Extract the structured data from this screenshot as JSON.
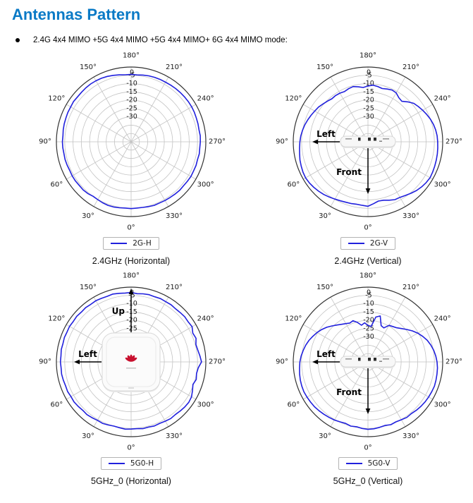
{
  "page": {
    "title": "Antennas Pattern",
    "bullet_text": "2.4G 4x4 MIMO +5G 4x4 MIMO +5G 4x4 MIMO+ 6G 4x4 MIMO mode:"
  },
  "colors": {
    "title_blue": "#0a7ac6",
    "curve_blue": "#2020dd",
    "grid_gray": "#c3c3c3",
    "outline_dark": "#333333",
    "logo_red": "#c8102e"
  },
  "polar_axes": {
    "angle_labels": [
      "180°",
      "210°",
      "240°",
      "270°",
      "300°",
      "330°",
      "0°",
      "30°",
      "60°",
      "90°",
      "120°",
      "150°"
    ],
    "radial_tick_labels": [
      "0",
      "-5",
      "-10",
      "-15",
      "-20",
      "-25",
      "-30"
    ],
    "radial_ticks": [
      0,
      -5,
      -10,
      -15,
      -20,
      -25,
      -30
    ],
    "r_max": 0,
    "r_min": -45,
    "ring_step": 5,
    "spoke_step_deg": 30
  },
  "chart_data": [
    {
      "type": "polar-line",
      "series_name": "2G-H",
      "legend": "2G-H",
      "caption": "2.4GHz (Horizontal)",
      "angle_start_deg": 0,
      "angle_step_deg": 5,
      "values_db": [
        -4.8,
        -5.0,
        -4.7,
        -4.4,
        -4.3,
        -4.5,
        -4.8,
        -5.0,
        -4.4,
        -4.1,
        -4.2,
        -4.0,
        -4.0,
        -4.2,
        -4.0,
        -3.8,
        -3.9,
        -3.7,
        -3.6,
        -3.8,
        -3.5,
        -3.3,
        -3.2,
        -3.0,
        -3.0,
        -2.7,
        -2.9,
        -2.8,
        -2.6,
        -2.5,
        -2.6,
        -2.8,
        -3.1,
        -3.6,
        -4.1,
        -4.5,
        -4.4,
        -4.6,
        -4.2,
        -3.9,
        -3.7,
        -3.6,
        -3.6,
        -3.4,
        -3.2,
        -3.1,
        -3.0,
        -2.9,
        -2.9,
        -3.0,
        -3.2,
        -3.3,
        -3.5,
        -3.2,
        -3.3,
        -3.5,
        -3.3,
        -3.6,
        -3.4,
        -3.5,
        -3.4,
        -3.6,
        -3.8,
        -3.7,
        -3.9,
        -4.1,
        -4.2,
        -4.4,
        -4.3,
        -4.6,
        -4.9,
        -5.0
      ],
      "overlay": {
        "type": "none"
      }
    },
    {
      "type": "polar-line",
      "series_name": "2G-V",
      "legend": "2G-V",
      "caption": "2.4GHz (Vertical)",
      "angle_start_deg": 0,
      "angle_step_deg": 5,
      "values_db": [
        -6.2,
        -6.6,
        -6.8,
        -6.5,
        -6.3,
        -5.8,
        -5.2,
        -4.4,
        -3.6,
        -3.0,
        -2.4,
        -1.9,
        -1.6,
        -1.8,
        -2.2,
        -2.6,
        -3.2,
        -3.6,
        -4.0,
        -4.4,
        -5.0,
        -5.6,
        -6.4,
        -7.2,
        -8.0,
        -8.6,
        -9.6,
        -10.4,
        -11.2,
        -11.0,
        -11.2,
        -11.6,
        -11.0,
        -10.6,
        -11.4,
        -12.2,
        -11.4,
        -10.8,
        -11.2,
        -11.8,
        -11.2,
        -10.6,
        -11.0,
        -12.6,
        -13.2,
        -11.0,
        -9.0,
        -8.0,
        -7.0,
        -6.0,
        -5.0,
        -4.2,
        -3.6,
        -3.2,
        -3.0,
        -2.8,
        -2.6,
        -2.4,
        -2.2,
        -2.0,
        -1.8,
        -2.2,
        -2.8,
        -3.6,
        -4.6,
        -5.6,
        -6.4,
        -6.6,
        -7.6,
        -8.6,
        -8.8,
        -7.6
      ],
      "overlay": {
        "type": "side_view",
        "device": "access-point-side-view",
        "arrows": [
          {
            "label": "Left",
            "direction": "left"
          },
          {
            "label": "Front",
            "direction": "down"
          }
        ]
      }
    },
    {
      "type": "polar-line",
      "series_name": "5G0-H",
      "legend": "5G0-H",
      "caption": "5GHz_0 (Horizontal)",
      "angle_start_deg": 0,
      "angle_step_deg": 5,
      "values_db": [
        -4.6,
        -4.4,
        -4.8,
        -5.0,
        -4.6,
        -4.2,
        -4.4,
        -4.0,
        -3.6,
        -3.8,
        -3.4,
        -3.0,
        -3.2,
        -2.8,
        -3.0,
        -2.7,
        -2.5,
        -2.7,
        -2.4,
        -2.6,
        -2.3,
        -2.5,
        -2.2,
        -2.4,
        -2.2,
        -2.5,
        -2.3,
        -2.6,
        -2.4,
        -2.7,
        -2.5,
        -2.8,
        -3.0,
        -2.7,
        -3.1,
        -3.4,
        -3.2,
        -3.8,
        -3.4,
        -3.1,
        -3.3,
        -3.0,
        -3.2,
        -3.0,
        -3.3,
        -3.1,
        -2.8,
        -3.0,
        -2.6,
        -4.0,
        -3.4,
        -4.6,
        -4.2,
        -3.4,
        -2.6,
        -4.4,
        -5.0,
        -4.4,
        -5.4,
        -4.2,
        -3.0,
        -2.6,
        -2.8,
        -3.2,
        -3.6,
        -3.4,
        -3.8,
        -4.2,
        -4.0,
        -4.4,
        -4.2,
        -4.7
      ],
      "overlay": {
        "type": "top_view",
        "device": "access-point-top-view",
        "logo": "huawei-logo",
        "arrows": [
          {
            "label": "Up",
            "direction": "up"
          },
          {
            "label": "Left",
            "direction": "left"
          }
        ]
      }
    },
    {
      "type": "polar-line",
      "series_name": "5G0-V",
      "legend": "5G0-V",
      "caption": "5GHz_0 (Vertical)",
      "angle_start_deg": 0,
      "angle_step_deg": 5,
      "values_db": [
        -4.4,
        -4.8,
        -5.4,
        -5.0,
        -5.6,
        -5.2,
        -4.6,
        -4.2,
        -3.8,
        -3.4,
        -3.0,
        -2.8,
        -2.6,
        -2.4,
        -2.6,
        -2.8,
        -3.2,
        -3.6,
        -4.0,
        -4.6,
        -5.4,
        -6.2,
        -7.2,
        -8.4,
        -9.6,
        -11.0,
        -12.6,
        -14.4,
        -16.0,
        -17.4,
        -18.4,
        -19.2,
        -18.6,
        -20.4,
        -22.6,
        -21.4,
        -23.0,
        -23.6,
        -17.6,
        -16.4,
        -21.8,
        -22.4,
        -19.6,
        -19.0,
        -18.2,
        -16.6,
        -14.6,
        -12.4,
        -10.4,
        -8.6,
        -7.0,
        -5.8,
        -4.8,
        -4.0,
        -3.4,
        -3.0,
        -2.8,
        -2.6,
        -2.4,
        -2.6,
        -2.8,
        -3.0,
        -3.4,
        -3.8,
        -4.4,
        -4.2,
        -4.8,
        -5.2,
        -4.8,
        -5.4,
        -5.0,
        -4.6
      ],
      "overlay": {
        "type": "side_view",
        "device": "access-point-side-view",
        "arrows": [
          {
            "label": "Left",
            "direction": "left"
          },
          {
            "label": "Front",
            "direction": "down"
          }
        ]
      }
    }
  ]
}
